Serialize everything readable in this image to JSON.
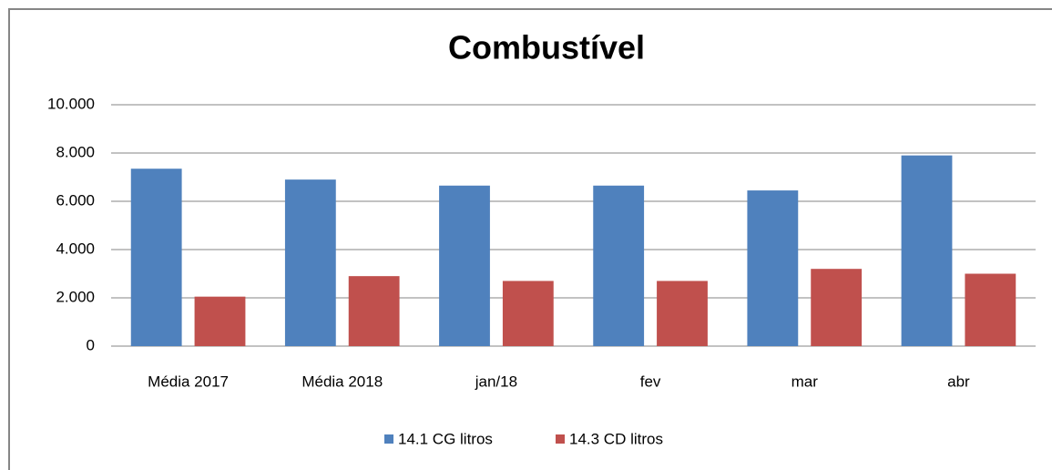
{
  "chart_data": {
    "type": "bar",
    "title": "Combustível",
    "categories": [
      "Média 2017",
      "Média 2018",
      "jan/18",
      "fev",
      "mar",
      "abr"
    ],
    "series": [
      {
        "name": "14.1 CG litros",
        "color": "#4f81bd",
        "values": [
          7350,
          6900,
          6650,
          6650,
          6450,
          7900
        ]
      },
      {
        "name": "14.3 CD litros",
        "color": "#c0504d",
        "values": [
          2050,
          2900,
          2700,
          2700,
          3200,
          3000
        ]
      }
    ],
    "ylim": [
      0,
      10000
    ],
    "yticks": [
      0,
      {
        "value": 2000,
        "label": "2.000"
      },
      {
        "value": 4000,
        "label": "4.000"
      },
      {
        "value": 6000,
        "label": "6.000"
      },
      {
        "value": 8000,
        "label": "8.000"
      },
      {
        "value": 10000,
        "label": "10.000"
      }
    ],
    "grid": true,
    "legend": "bottom"
  }
}
